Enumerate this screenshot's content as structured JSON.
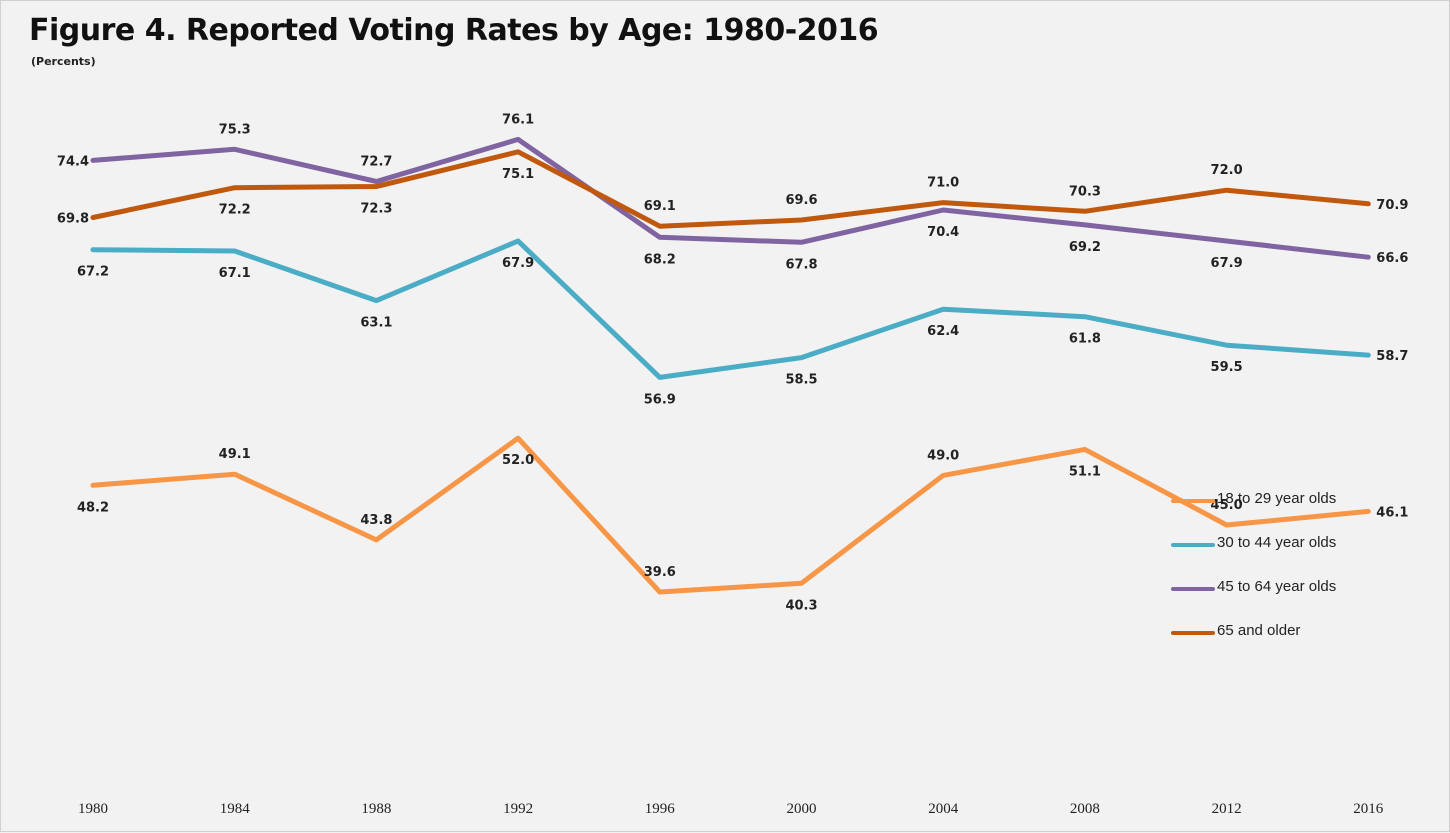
{
  "title": "Figure 4. Reported Voting Rates by Age: 1980-2016",
  "subtitle": "(Percents)",
  "chart_data": {
    "type": "line",
    "title": "Figure 4. Reported Voting Rates by Age: 1980-2016",
    "subtitle": "(Percents)",
    "xlabel": "",
    "ylabel": "",
    "x": [
      "1980",
      "1984",
      "1988",
      "1992",
      "1996",
      "2000",
      "2004",
      "2008",
      "2012",
      "2016"
    ],
    "ylim": [
      30,
      80
    ],
    "grid": false,
    "legend_position": "right",
    "series": [
      {
        "name": "18 to 29 year olds",
        "color": "#f79646",
        "values": [
          48.2,
          49.1,
          43.8,
          52.0,
          39.6,
          40.3,
          49.0,
          51.1,
          45.0,
          46.1
        ],
        "label_pos": [
          "below",
          "above",
          "above",
          "below",
          "above",
          "below",
          "above",
          "below",
          "above",
          "right"
        ]
      },
      {
        "name": "30 to 44 year olds",
        "color": "#4bacc6",
        "values": [
          67.2,
          67.1,
          63.1,
          67.9,
          56.9,
          58.5,
          62.4,
          61.8,
          59.5,
          58.7
        ],
        "label_pos": [
          "below",
          "below",
          "below",
          "below",
          "below",
          "below",
          "below",
          "below",
          "below",
          "right"
        ]
      },
      {
        "name": "45 to 64 year olds",
        "color": "#8064a2",
        "values": [
          74.4,
          75.3,
          72.7,
          76.1,
          68.2,
          67.8,
          70.4,
          69.2,
          67.9,
          66.6
        ],
        "label_pos": [
          "left",
          "above",
          "above",
          "above",
          "below",
          "below",
          "below",
          "below",
          "below",
          "right"
        ]
      },
      {
        "name": "65 and older",
        "color": "#c0580e",
        "values": [
          69.8,
          72.2,
          72.3,
          75.1,
          69.1,
          69.6,
          71.0,
          70.3,
          72.0,
          70.9
        ],
        "label_pos": [
          "left",
          "below",
          "below",
          "below",
          "above",
          "above",
          "above",
          "above",
          "above",
          "right"
        ]
      }
    ],
    "data_labels": [
      [
        "48.2",
        "49.1",
        "43.8",
        "52.0",
        "39.6",
        "40.3",
        "49.0",
        "51.1",
        "45.0",
        "46.1"
      ],
      [
        "67.2",
        "67.1",
        "63.1",
        "67.9",
        "56.9",
        "58.5",
        "62.4",
        "61.8",
        "59.5",
        "58.7"
      ],
      [
        "74.4",
        "75.3",
        "72.7",
        "76.1",
        "68.2",
        "67.8",
        "70.4",
        "69.2",
        "67.9",
        "66.6"
      ],
      [
        "69.8",
        "72.2",
        "72.3",
        "75.1",
        "69.1",
        "69.6",
        "71.0",
        "70.3",
        "72.0",
        "70.9"
      ]
    ]
  }
}
